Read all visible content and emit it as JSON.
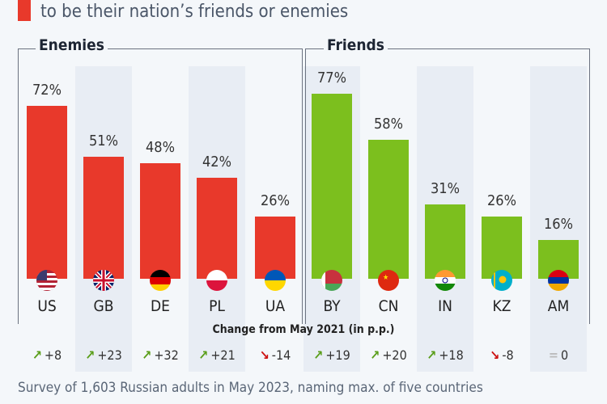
{
  "subtitle": "to be their nation’s friends or enemies",
  "colors": {
    "enemies": "#e8392b",
    "friends": "#7cbf1e",
    "up": "#5a9e1a",
    "down": "#cc1111",
    "neutral": "#bbbbbb"
  },
  "groups": {
    "enemies": "Enemies",
    "friends": "Friends"
  },
  "change_title": "Change from May 2021 (in p.p.)",
  "footer": "Survey of 1,603 Russian adults in May 2023, naming max. of five countries",
  "chart_data": {
    "type": "bar",
    "categories": [
      "US",
      "GB",
      "DE",
      "PL",
      "UA",
      "BY",
      "CN",
      "IN",
      "KZ",
      "AM"
    ],
    "groups": [
      "Enemies",
      "Enemies",
      "Enemies",
      "Enemies",
      "Enemies",
      "Friends",
      "Friends",
      "Friends",
      "Friends",
      "Friends"
    ],
    "values": [
      72,
      51,
      48,
      42,
      26,
      77,
      58,
      31,
      26,
      16
    ],
    "labels": [
      "72%",
      "51%",
      "48%",
      "42%",
      "26%",
      "77%",
      "58%",
      "31%",
      "26%",
      "16%"
    ],
    "change": [
      8,
      23,
      32,
      21,
      -14,
      19,
      20,
      18,
      -8,
      0
    ],
    "change_labels": [
      "+8",
      "+23",
      "+32",
      "+21",
      "-14",
      "+19",
      "+20",
      "+18",
      "-8",
      "0"
    ],
    "ylim": [
      0,
      100
    ]
  }
}
